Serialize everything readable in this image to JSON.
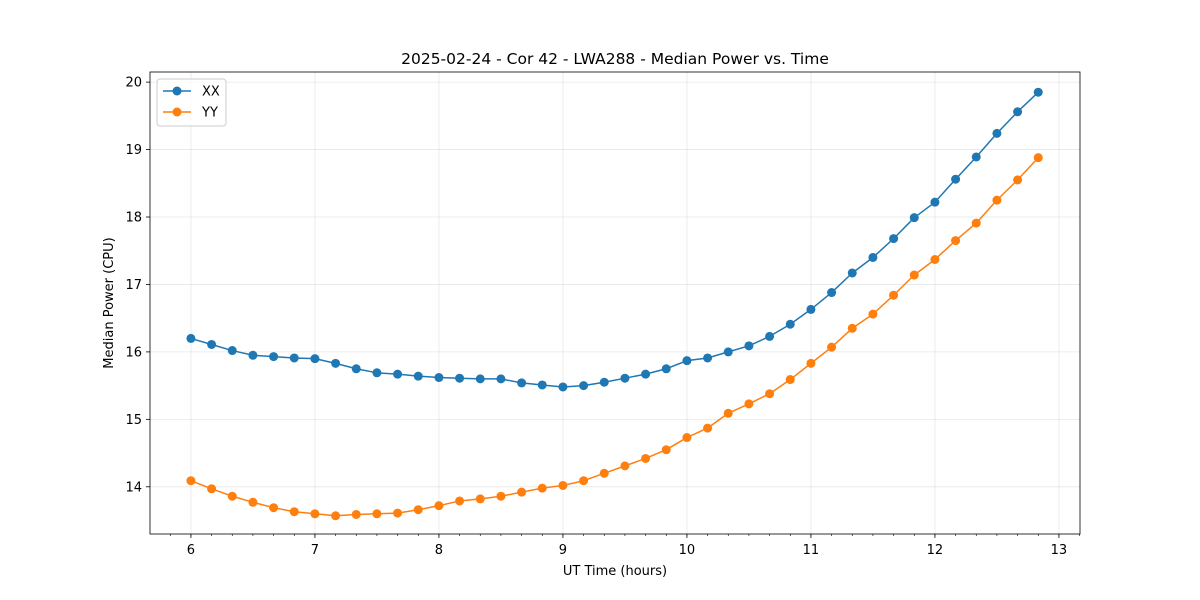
{
  "chart_data": {
    "type": "line",
    "title": "2025-02-24 - Cor 42 - LWA288 - Median Power vs. Time",
    "xlabel": "UT Time (hours)",
    "ylabel": "Median Power (CPU)",
    "xlim": [
      5.67,
      13.17
    ],
    "ylim": [
      13.3,
      20.15
    ],
    "xticks": [
      6,
      7,
      8,
      9,
      10,
      11,
      12,
      13
    ],
    "yticks": [
      14,
      15,
      16,
      17,
      18,
      19,
      20
    ],
    "grid": true,
    "legend_position": "top-left",
    "x": [
      6.0,
      6.1667,
      6.3333,
      6.5,
      6.6667,
      6.8333,
      7.0,
      7.1667,
      7.3333,
      7.5,
      7.6667,
      7.8333,
      8.0,
      8.1667,
      8.3333,
      8.5,
      8.6667,
      8.8333,
      9.0,
      9.1667,
      9.3333,
      9.5,
      9.6667,
      9.8333,
      10.0,
      10.1667,
      10.3333,
      10.5,
      10.6667,
      10.8333,
      11.0,
      11.1667,
      11.3333,
      11.5,
      11.6667,
      11.8333,
      12.0,
      12.1667,
      12.3333,
      12.5,
      12.6667,
      12.8333
    ],
    "series": [
      {
        "name": "XX",
        "color": "#1f77b4",
        "values": [
          16.2,
          16.11,
          16.02,
          15.95,
          15.93,
          15.91,
          15.9,
          15.83,
          15.75,
          15.69,
          15.67,
          15.64,
          15.62,
          15.61,
          15.6,
          15.6,
          15.54,
          15.51,
          15.48,
          15.5,
          15.55,
          15.61,
          15.67,
          15.75,
          15.87,
          15.91,
          16.0,
          16.09,
          16.23,
          16.41,
          16.63,
          16.88,
          17.17,
          17.4,
          17.68,
          17.99,
          18.22,
          18.56,
          18.89,
          19.24,
          19.56,
          19.85
        ]
      },
      {
        "name": "YY",
        "color": "#ff7f0e",
        "values": [
          14.09,
          13.97,
          13.86,
          13.77,
          13.69,
          13.63,
          13.6,
          13.57,
          13.59,
          13.6,
          13.61,
          13.66,
          13.72,
          13.79,
          13.82,
          13.86,
          13.92,
          13.98,
          14.02,
          14.09,
          14.2,
          14.31,
          14.42,
          14.55,
          14.73,
          14.87,
          15.09,
          15.23,
          15.38,
          15.59,
          15.83,
          16.07,
          16.35,
          16.56,
          16.84,
          17.14,
          17.37,
          17.65,
          17.91,
          18.25,
          18.55,
          18.88
        ]
      }
    ]
  }
}
